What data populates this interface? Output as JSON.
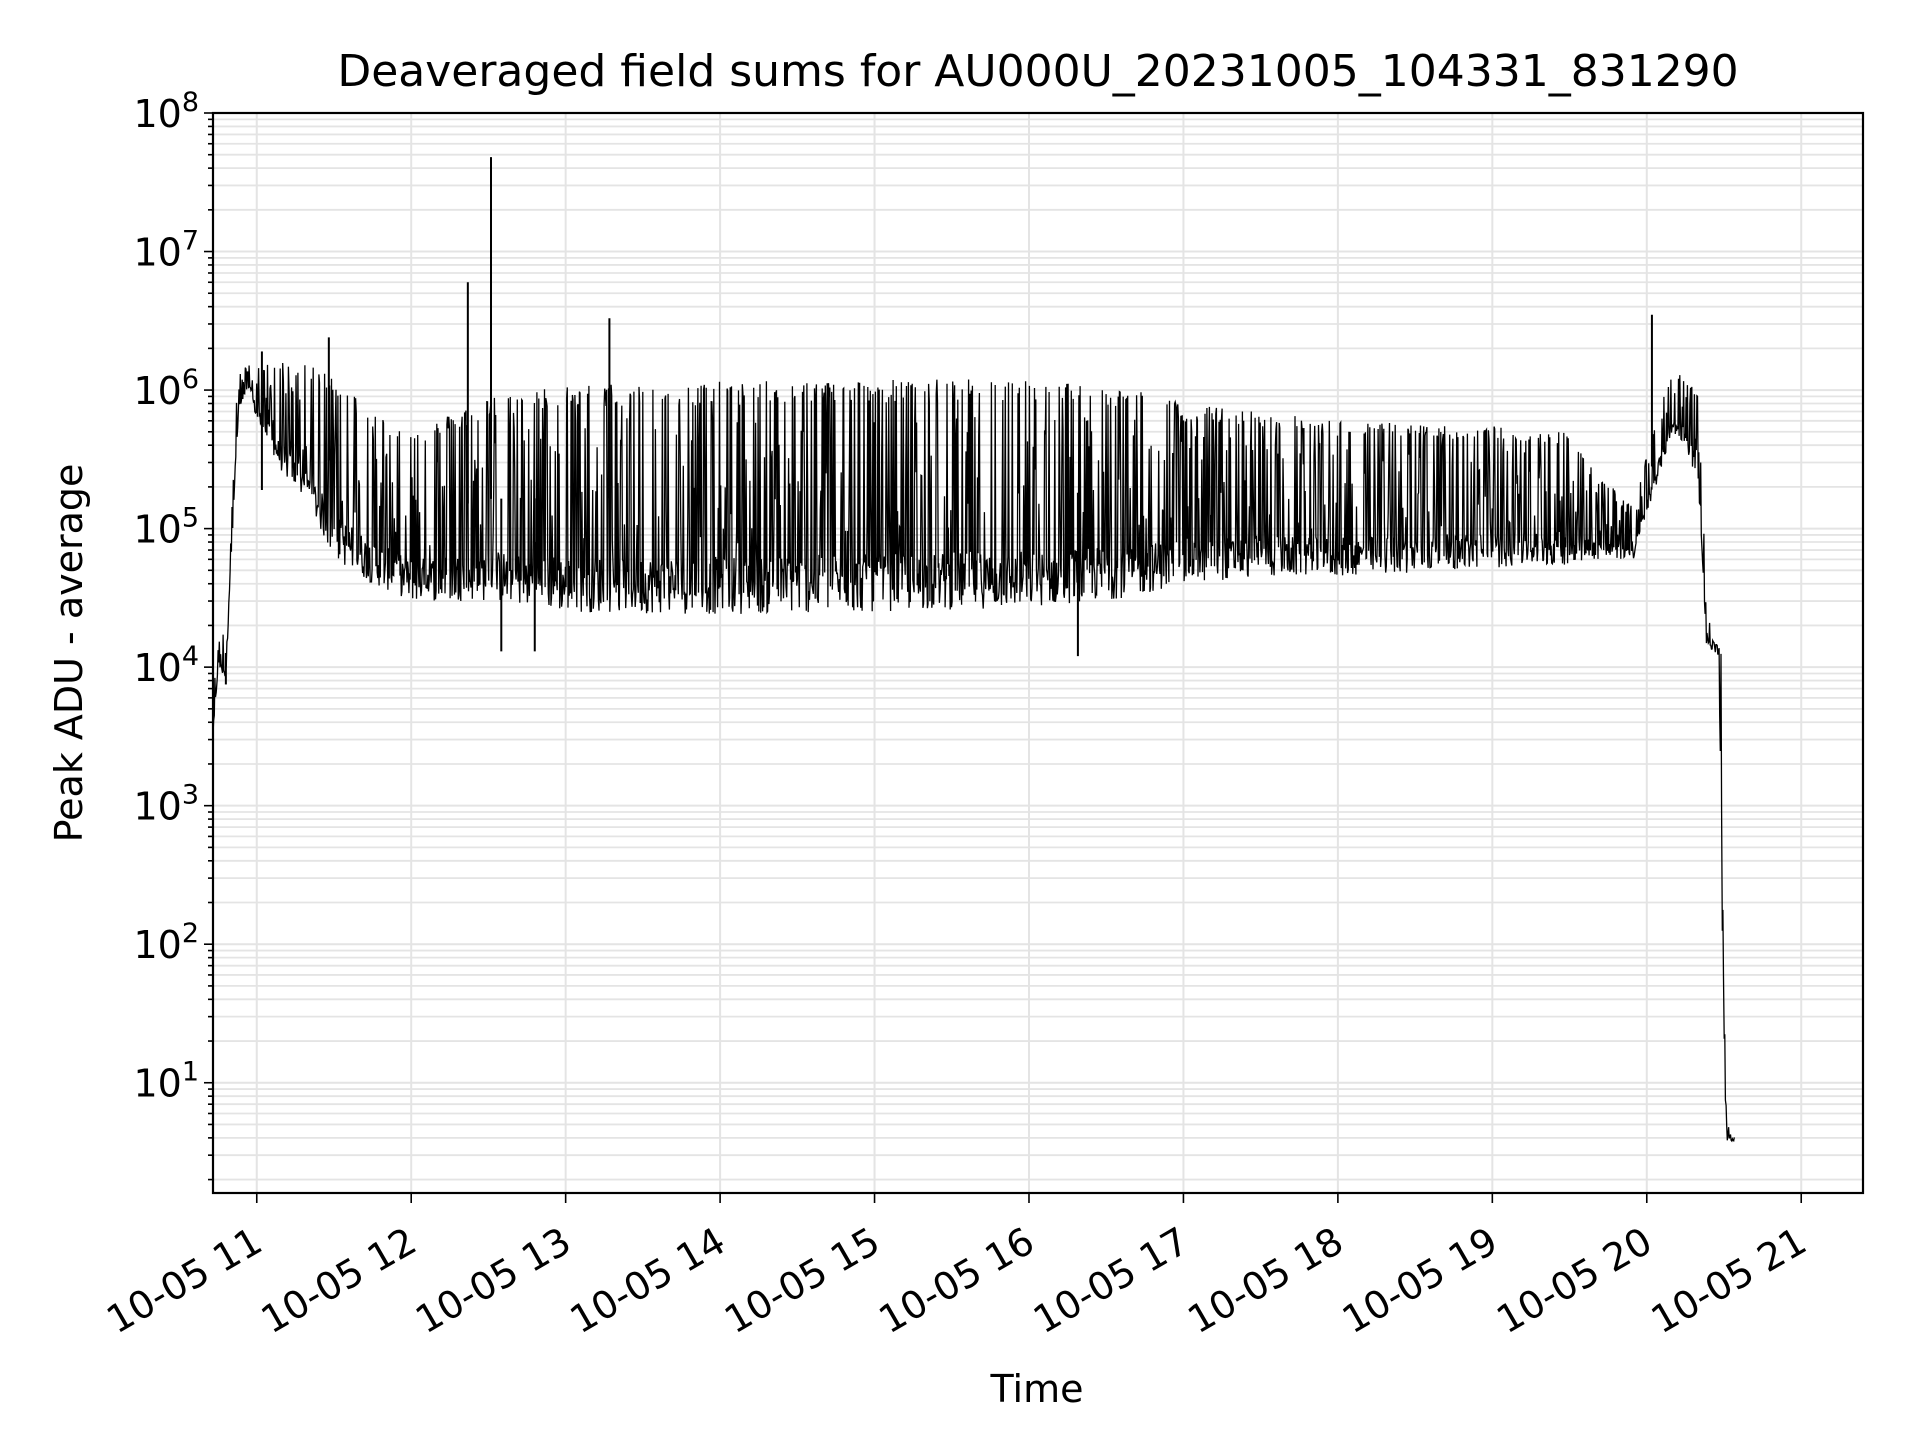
{
  "chart_data": {
    "type": "line",
    "title": "Deaveraged field sums for AU000U_20231005_104331_831290",
    "xlabel": "Time",
    "ylabel": "Peak ADU - average",
    "yscale": "log",
    "ylim": [
      1.6,
      100000000
    ],
    "xlim": [
      "10-05 10:43",
      "10-05 21:24"
    ],
    "grid": true,
    "x_ticks": [
      "10-05 11",
      "10-05 12",
      "10-05 13",
      "10-05 14",
      "10-05 15",
      "10-05 16",
      "10-05 17",
      "10-05 18",
      "10-05 19",
      "10-05 20",
      "10-05 21"
    ],
    "y_ticks": [
      {
        "base": "10",
        "exp": "1",
        "value": 10
      },
      {
        "base": "10",
        "exp": "2",
        "value": 100
      },
      {
        "base": "10",
        "exp": "3",
        "value": 1000
      },
      {
        "base": "10",
        "exp": "4",
        "value": 10000
      },
      {
        "base": "10",
        "exp": "5",
        "value": 100000
      },
      {
        "base": "10",
        "exp": "6",
        "value": 1000000
      },
      {
        "base": "10",
        "exp": "7",
        "value": 10000000
      },
      {
        "base": "10",
        "exp": "8",
        "value": 100000000
      }
    ],
    "series": [
      {
        "color": "#000000",
        "envelope": [
          {
            "x": "10-05 10:43",
            "lo": 3000,
            "hi": 6000
          },
          {
            "x": "10-05 10:45",
            "lo": 10000,
            "hi": 15000
          },
          {
            "x": "10-05 10:48",
            "lo": 8000,
            "hi": 20000
          },
          {
            "x": "10-05 10:50",
            "lo": 60000,
            "hi": 300000
          },
          {
            "x": "10-05 10:53",
            "lo": 700000,
            "hi": 1300000
          },
          {
            "x": "10-05 10:57",
            "lo": 1000000,
            "hi": 1550000
          },
          {
            "x": "10-05 11:00",
            "lo": 600000,
            "hi": 1500000
          },
          {
            "x": "10-05 11:10",
            "lo": 250000,
            "hi": 1600000
          },
          {
            "x": "10-05 11:20",
            "lo": 150000,
            "hi": 1500000
          },
          {
            "x": "10-05 11:30",
            "lo": 60000,
            "hi": 1300000
          },
          {
            "x": "10-05 11:45",
            "lo": 40000,
            "hi": 700000
          },
          {
            "x": "10-05 12:00",
            "lo": 30000,
            "hi": 500000
          },
          {
            "x": "10-05 12:30",
            "lo": 30000,
            "hi": 900000
          },
          {
            "x": "10-05 13:00",
            "lo": 25000,
            "hi": 1100000
          },
          {
            "x": "10-05 14:00",
            "lo": 24000,
            "hi": 1150000
          },
          {
            "x": "10-05 15:00",
            "lo": 25000,
            "hi": 1200000
          },
          {
            "x": "10-05 16:00",
            "lo": 27000,
            "hi": 1200000
          },
          {
            "x": "10-05 16:40",
            "lo": 32000,
            "hi": 1050000
          },
          {
            "x": "10-05 17:00",
            "lo": 40000,
            "hi": 800000
          },
          {
            "x": "10-05 17:30",
            "lo": 45000,
            "hi": 700000
          },
          {
            "x": "10-05 18:00",
            "lo": 45000,
            "hi": 600000
          },
          {
            "x": "10-05 19:00",
            "lo": 52000,
            "hi": 550000
          },
          {
            "x": "10-05 19:30",
            "lo": 55000,
            "hi": 500000
          },
          {
            "x": "10-05 19:40",
            "lo": 60000,
            "hi": 250000
          },
          {
            "x": "10-05 19:55",
            "lo": 60000,
            "hi": 150000
          },
          {
            "x": "10-05 20:05",
            "lo": 250000,
            "hi": 800000
          },
          {
            "x": "10-05 20:10",
            "lo": 500000,
            "hi": 1300000
          },
          {
            "x": "10-05 20:15",
            "lo": 400000,
            "hi": 1300000
          },
          {
            "x": "10-05 20:20",
            "lo": 200000,
            "hi": 900000
          },
          {
            "x": "10-05 20:23",
            "lo": 15000,
            "hi": 40000
          },
          {
            "x": "10-05 20:25",
            "lo": 13000,
            "hi": 16000
          },
          {
            "x": "10-05 20:28",
            "lo": 12000,
            "hi": 14000
          },
          {
            "x": "10-05 20:30",
            "lo": 10,
            "hi": 12000
          },
          {
            "x": "10-05 20:31",
            "lo": 3.8,
            "hi": 5
          },
          {
            "x": "10-05 20:34",
            "lo": 3.8,
            "hi": 4.2
          }
        ],
        "spikes": [
          {
            "x": "10-05 12:22",
            "y": 6000000
          },
          {
            "x": "10-05 12:31",
            "y": 48000000
          },
          {
            "x": "10-05 12:31",
            "y": 19000000
          },
          {
            "x": "10-05 13:17",
            "y": 3300000
          },
          {
            "x": "10-05 20:02",
            "y": 3500000
          },
          {
            "x": "10-05 11:02",
            "y": 1900000
          },
          {
            "x": "10-05 11:28",
            "y": 2400000
          },
          {
            "x": "10-05 11:02",
            "y": 190000
          },
          {
            "x": "10-05 16:19",
            "y": 12000
          },
          {
            "x": "10-05 12:35",
            "y": 13000
          },
          {
            "x": "10-05 12:48",
            "y": 13000
          },
          {
            "x": "10-05 10:48",
            "y": 7500
          }
        ]
      }
    ]
  }
}
